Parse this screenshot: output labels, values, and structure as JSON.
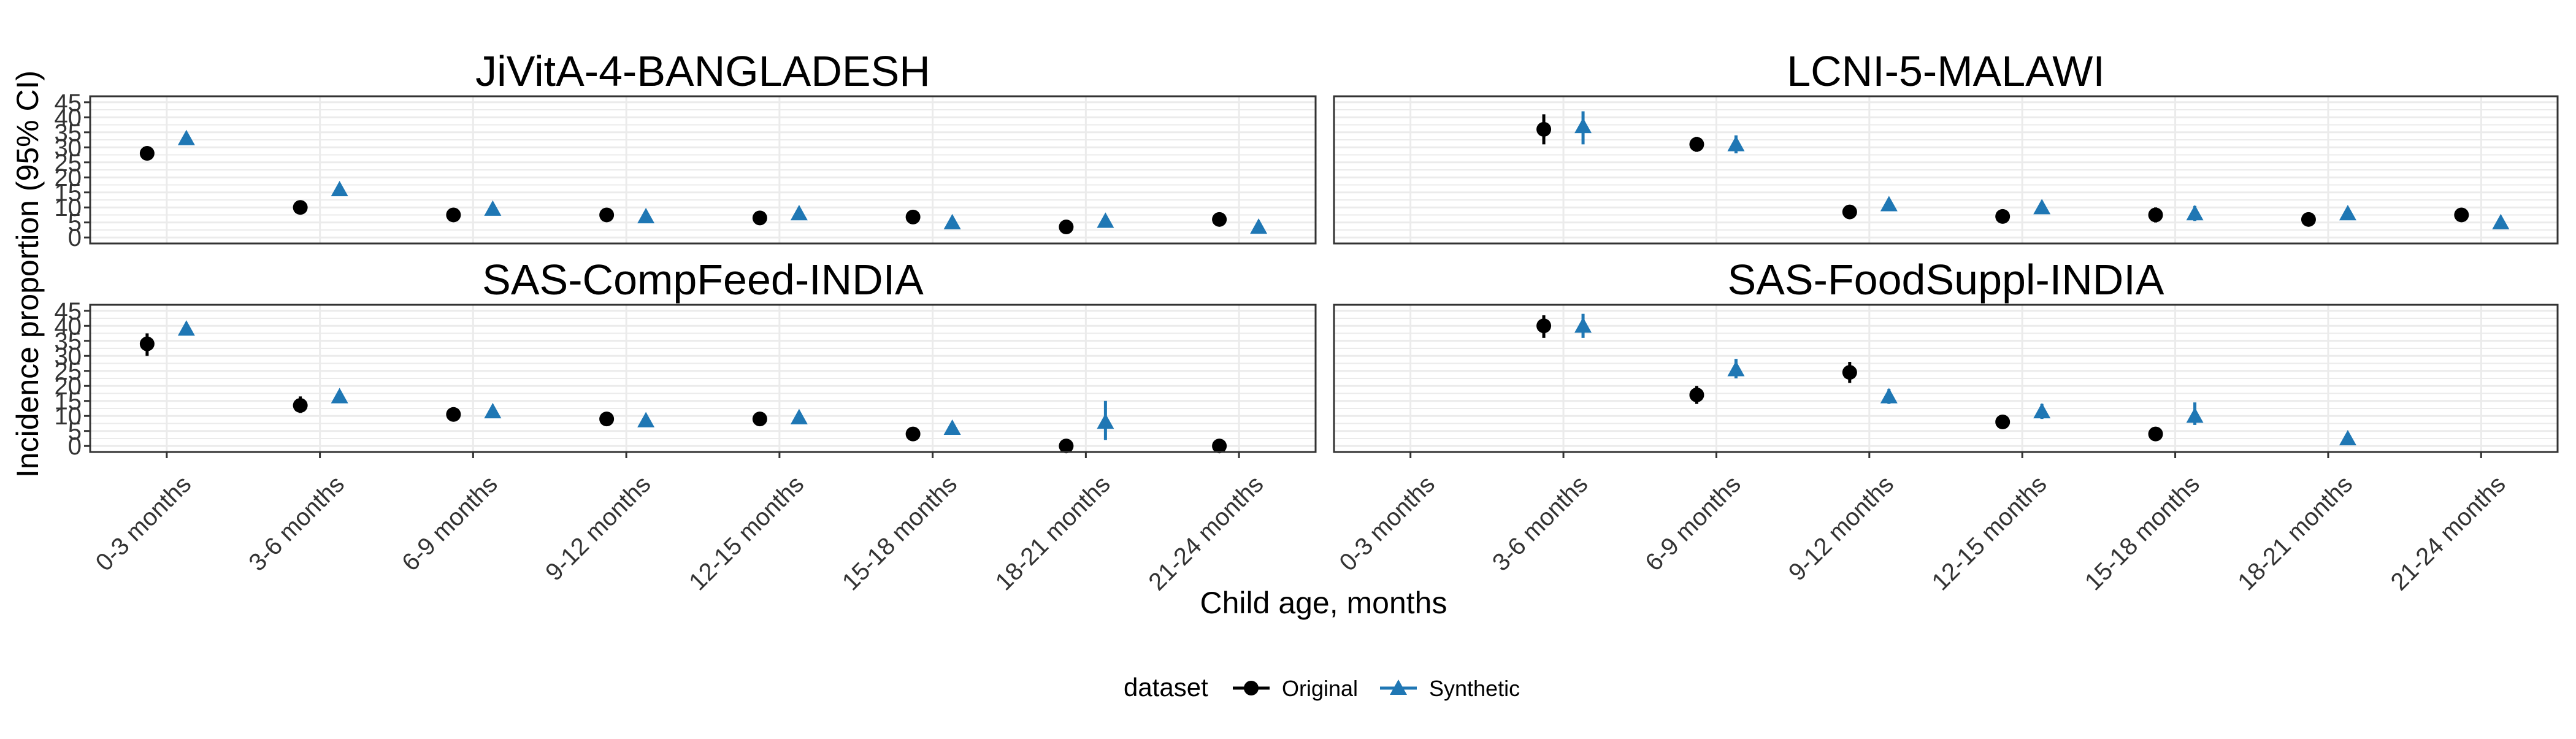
{
  "chart_data": {
    "type": "scatter",
    "ylabel": "Incidence proportion (95% CI)",
    "xlabel": "Child age, months",
    "ylim": [
      -2,
      47
    ],
    "yticks": [
      0,
      5,
      10,
      15,
      20,
      25,
      30,
      35,
      40,
      45
    ],
    "categories": [
      "0-3 months",
      "3-6 months",
      "6-9 months",
      "9-12 months",
      "12-15 months",
      "15-18 months",
      "18-21 months",
      "21-24 months"
    ],
    "grid": true,
    "facet_layout": "2x2",
    "legend": {
      "title": "dataset",
      "position": "bottom",
      "entries": [
        {
          "name": "Original",
          "shape": "circle",
          "color": "#000000"
        },
        {
          "name": "Synthetic",
          "shape": "triangle",
          "color": "#1F77B4"
        }
      ]
    },
    "panels": [
      {
        "title": "JiVitA-4-BANGLADESH",
        "series": [
          {
            "name": "Original",
            "points": [
              [
                0,
                28,
                26.5,
                29.5
              ],
              [
                1,
                10,
                9.2,
                10.8
              ],
              [
                2,
                7.5,
                6.8,
                8.2
              ],
              [
                3,
                7.5,
                6.8,
                8.2
              ],
              [
                4,
                6.5,
                5.8,
                7.2
              ],
              [
                5,
                6.8,
                6,
                7.6
              ],
              [
                6,
                3.5,
                3,
                4
              ],
              [
                7,
                6,
                4,
                8
              ]
            ]
          },
          {
            "name": "Synthetic",
            "points": [
              [
                0,
                33,
                31.5,
                34.5
              ],
              [
                1,
                16,
                15,
                17
              ],
              [
                2,
                9.5,
                8.5,
                10.5
              ],
              [
                3,
                7,
                6.2,
                7.8
              ],
              [
                4,
                8,
                7.2,
                8.8
              ],
              [
                5,
                5,
                4.3,
                5.7
              ],
              [
                6,
                5.5,
                4.8,
                6.2
              ],
              [
                7,
                3.5,
                2.8,
                4.2
              ]
            ]
          }
        ]
      },
      {
        "title": "LCNI-5-MALAWI",
        "series": [
          {
            "name": "Original",
            "points": [
              [
                1,
                36,
                31,
                41
              ],
              [
                2,
                31,
                28.5,
                33.5
              ],
              [
                3,
                8.5,
                7.5,
                9.5
              ],
              [
                4,
                7,
                6.2,
                7.8
              ],
              [
                5,
                7.5,
                5,
                10
              ],
              [
                6,
                6,
                5.3,
                6.7
              ],
              [
                7,
                7.5,
                6,
                9
              ]
            ]
          },
          {
            "name": "Synthetic",
            "points": [
              [
                1,
                37,
                31,
                42
              ],
              [
                2,
                31,
                28,
                34
              ],
              [
                3,
                11,
                9.5,
                12.5
              ],
              [
                4,
                10,
                8.5,
                11.5
              ],
              [
                5,
                8,
                5.5,
                10.5
              ],
              [
                6,
                8,
                7,
                9
              ],
              [
                7,
                5,
                4.3,
                5.7
              ]
            ]
          }
        ]
      },
      {
        "title": "SAS-CompFeed-INDIA",
        "series": [
          {
            "name": "Original",
            "points": [
              [
                0,
                34,
                30,
                37.5
              ],
              [
                1,
                13.5,
                11,
                16.5
              ],
              [
                2,
                10.5,
                8.5,
                12.5
              ],
              [
                3,
                9,
                7.5,
                10.5
              ],
              [
                4,
                9,
                7,
                11
              ],
              [
                5,
                4,
                3,
                5
              ],
              [
                6,
                0,
                0,
                0
              ],
              [
                7,
                0,
                0,
                0
              ]
            ]
          },
          {
            "name": "Synthetic",
            "points": [
              [
                0,
                39,
                37,
                41
              ],
              [
                1,
                16.5,
                15,
                18
              ],
              [
                2,
                11.5,
                10.5,
                12.5
              ],
              [
                3,
                8.5,
                7.5,
                9.5
              ],
              [
                4,
                9.5,
                8.5,
                10.5
              ],
              [
                5,
                6,
                5,
                7
              ],
              [
                6,
                8,
                2,
                15
              ]
            ]
          }
        ]
      },
      {
        "title": "SAS-FoodSuppl-INDIA",
        "series": [
          {
            "name": "Original",
            "points": [
              [
                1,
                40,
                36,
                43.5
              ],
              [
                2,
                17,
                14,
                20
              ],
              [
                3,
                24.5,
                21,
                28
              ],
              [
                4,
                8,
                6.5,
                9.5
              ],
              [
                5,
                4,
                3,
                5.5
              ]
            ]
          },
          {
            "name": "Synthetic",
            "points": [
              [
                1,
                40,
                36,
                44
              ],
              [
                2,
                25.5,
                22.5,
                29
              ],
              [
                3,
                16.5,
                14,
                19
              ],
              [
                4,
                11.5,
                9,
                14
              ],
              [
                5,
                10,
                7,
                14.5
              ],
              [
                6,
                2.5,
                2,
                3
              ]
            ]
          }
        ]
      }
    ]
  }
}
